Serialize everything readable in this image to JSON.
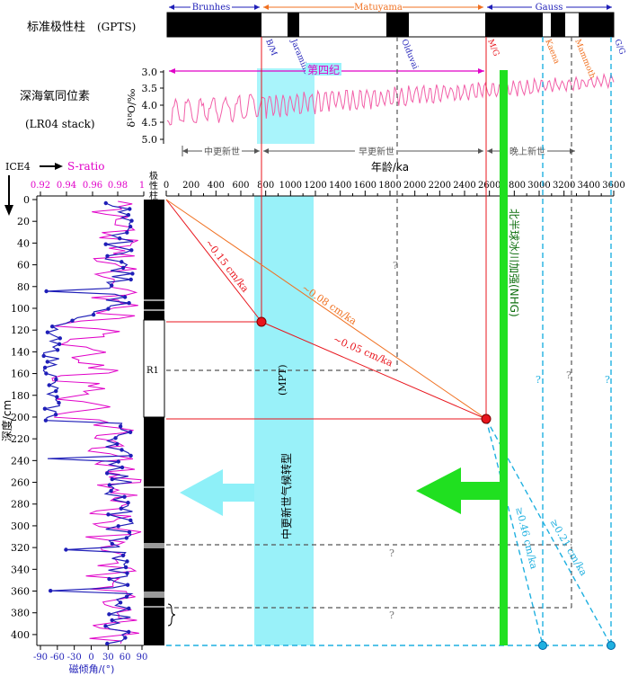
{
  "left_labels": {
    "gpts": "标准极性柱",
    "gpts_abbr": "(GPTS)",
    "isotope": "深海氧同位素",
    "isotope_abbr": "(LR04 stack)",
    "ice4": "ICE4",
    "s_ratio": "S-ratio",
    "polarity_col": [
      "极",
      "性",
      "柱"
    ],
    "depth_label": "深度/cm",
    "incl_label": "磁倾角/(°)",
    "d18o_label": "δ¹⁸O/‰"
  },
  "chrons": {
    "brunhes": "Brunhes",
    "matuyama": "Matuyama",
    "gauss": "Gauss"
  },
  "boundaries": [
    "B/M",
    "Jaramillo",
    "Olduvai",
    "M/G",
    "Kaena",
    "Mammoth",
    "G/G"
  ],
  "age_axis": {
    "title": "年龄/ka",
    "ticks": [
      "0",
      "200",
      "400",
      "600",
      "800",
      "1000",
      "1200",
      "1400",
      "1600",
      "1800",
      "2000",
      "2200",
      "2400",
      "2600",
      "2800",
      "3000",
      "3200",
      "3400",
      "3600"
    ]
  },
  "d18o_ticks": [
    "3.0",
    "3.5",
    "4.0",
    "4.5",
    "5.0"
  ],
  "epochs": {
    "quaternary": "第四纪",
    "mid_pleistocene": "中更新世",
    "early_pleistocene": "早更新世",
    "late_pliocene": "晚上新世"
  },
  "depth_ticks": [
    "0",
    "20",
    "40",
    "60",
    "80",
    "100",
    "120",
    "140",
    "160",
    "180",
    "200",
    "220",
    "240",
    "260",
    "280",
    "300",
    "320",
    "340",
    "360",
    "380",
    "400"
  ],
  "s_ratio_ticks": [
    "0.92",
    "0.94",
    "0.96",
    "0.98",
    "1"
  ],
  "incl_ticks": [
    "-90",
    "-60",
    "-30",
    "0",
    "30",
    "60",
    "90"
  ],
  "annotations": {
    "rate_015": "~0.15 cm/ka",
    "rate_008": "~0.08 cm/ka",
    "rate_005": "~0.05 cm/ka",
    "rate_046": "≥0.46 cm/ka",
    "rate_021": "≥0.21 cm/ka",
    "mpt": "(MPT)",
    "mpt_cn": "中更新世气候转型",
    "nhg": "北半球冰川加强(NHG)",
    "r1": "R1",
    "q": "?"
  },
  "colors": {
    "red": "#e8141c",
    "orange": "#f07020",
    "blue_line": "#1f1fb8",
    "magenta": "#e000c8",
    "pink_iso": "#f25fa8",
    "cyan_band": "#7ff0f8",
    "cyan_dash": "#1fb0e0",
    "green": "#20e020",
    "gray_dash": "#555555"
  }
}
